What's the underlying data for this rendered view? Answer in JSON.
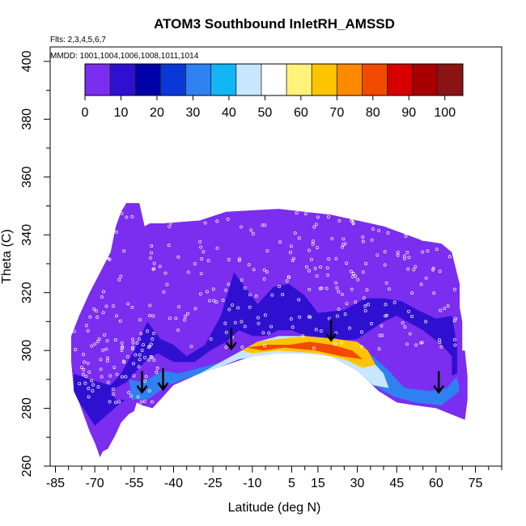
{
  "chart_data": {
    "type": "heatmap",
    "title": "ATOM3 Southbound InletRH_AMSSD",
    "flights_label": "Flts: 2,3,4,5,6,7",
    "dates_label": "MMDD: 1001,1004,1006,1008,1011,1014",
    "xlabel": "Latitude (deg N)",
    "ylabel": "Theta (C)",
    "xlim": [
      -87,
      85
    ],
    "ylim": [
      260,
      405
    ],
    "x_ticks": [
      -85,
      -70,
      -55,
      -40,
      -25,
      -10,
      5,
      15,
      30,
      45,
      60,
      75
    ],
    "y_ticks": [
      260,
      280,
      300,
      320,
      340,
      360,
      380,
      400
    ],
    "colorbar": {
      "min": 0,
      "max": 105,
      "ticks": [
        0,
        10,
        20,
        30,
        40,
        50,
        60,
        70,
        80,
        90,
        100
      ],
      "colors": [
        "#7b2df0",
        "#3010d0",
        "#0000a8",
        "#0a38d8",
        "#2f80f0",
        "#12b6f5",
        "#c8e6ff",
        "#ffffff",
        "#fff27a",
        "#ffc400",
        "#ff8a00",
        "#f24a00",
        "#d60000",
        "#a80000",
        "#8a1414"
      ]
    },
    "upper_boundary": [
      [
        -79,
        305
      ],
      [
        -76,
        312
      ],
      [
        -72,
        320
      ],
      [
        -68,
        327
      ],
      [
        -64,
        334
      ],
      [
        -62,
        343
      ],
      [
        -60,
        348
      ],
      [
        -58,
        351
      ],
      [
        -53,
        351
      ],
      [
        -52,
        347
      ],
      [
        -51,
        343
      ],
      [
        -49,
        344
      ],
      [
        -44,
        344
      ],
      [
        -30,
        345
      ],
      [
        -20,
        348
      ],
      [
        0,
        349
      ],
      [
        20,
        347
      ],
      [
        40,
        343
      ],
      [
        55,
        338
      ],
      [
        62,
        337
      ],
      [
        66,
        334
      ],
      [
        69,
        323
      ],
      [
        69,
        315
      ],
      [
        70,
        310
      ],
      [
        70,
        300
      ],
      [
        71,
        300
      ],
      [
        72,
        291
      ],
      [
        72,
        283
      ],
      [
        71,
        276
      ]
    ],
    "lower_boundary": [
      [
        71,
        276
      ],
      [
        60,
        280
      ],
      [
        52,
        281
      ],
      [
        45,
        282
      ],
      [
        38,
        286
      ],
      [
        30,
        293
      ],
      [
        20,
        298
      ],
      [
        10,
        299
      ],
      [
        0,
        299
      ],
      [
        -10,
        298
      ],
      [
        -20,
        295
      ],
      [
        -30,
        292
      ],
      [
        -40,
        288
      ],
      [
        -45,
        283
      ],
      [
        -48,
        280
      ],
      [
        -52,
        281
      ],
      [
        -54,
        282
      ],
      [
        -55,
        279
      ],
      [
        -57,
        278
      ],
      [
        -60,
        275
      ],
      [
        -62,
        271
      ],
      [
        -65,
        266
      ],
      [
        -67,
        265
      ],
      [
        -68,
        263
      ],
      [
        -70,
        268
      ],
      [
        -72,
        272
      ],
      [
        -74,
        277
      ],
      [
        -76,
        282
      ],
      [
        -78,
        286
      ],
      [
        -79,
        296
      ],
      [
        -79,
        305
      ]
    ],
    "bands": [
      {
        "rh": 10,
        "points": [
          [
            -78,
            292
          ],
          [
            -72,
            290
          ],
          [
            -64,
            288
          ],
          [
            -60,
            292
          ],
          [
            -55,
            300
          ],
          [
            -50,
            310
          ],
          [
            -45,
            304
          ],
          [
            -40,
            302
          ],
          [
            -35,
            298
          ],
          [
            -28,
            302
          ],
          [
            -22,
            312
          ],
          [
            -17,
            327
          ],
          [
            -12,
            321
          ],
          [
            -8,
            316
          ],
          [
            -2,
            322
          ],
          [
            4,
            323
          ],
          [
            10,
            319
          ],
          [
            15,
            313
          ],
          [
            25,
            314
          ],
          [
            33,
            318
          ],
          [
            40,
            318
          ],
          [
            47,
            317
          ],
          [
            53,
            314
          ],
          [
            60,
            311
          ],
          [
            66,
            312
          ],
          [
            68,
            302
          ],
          [
            68,
            292
          ],
          [
            60,
            289
          ],
          [
            50,
            285
          ],
          [
            40,
            291
          ],
          [
            30,
            298
          ],
          [
            -10,
            302
          ],
          [
            -30,
            296
          ],
          [
            -45,
            290
          ],
          [
            -60,
            282
          ],
          [
            -70,
            274
          ],
          [
            -78,
            285
          ]
        ]
      },
      {
        "rh": 5,
        "points": [
          [
            -64,
            286
          ],
          [
            -58,
            289
          ],
          [
            -50,
            297
          ],
          [
            -46,
            299
          ],
          [
            -40,
            296
          ],
          [
            -32,
            296
          ],
          [
            -26,
            300
          ],
          [
            -20,
            303
          ],
          [
            -15,
            307
          ],
          [
            -10,
            305
          ],
          [
            -5,
            305
          ],
          [
            0,
            307
          ],
          [
            5,
            307
          ],
          [
            10,
            305
          ],
          [
            20,
            303
          ],
          [
            30,
            304
          ],
          [
            40,
            310
          ],
          [
            45,
            312
          ],
          [
            55,
            307
          ],
          [
            62,
            302
          ],
          [
            66,
            298
          ],
          [
            66,
            286
          ],
          [
            60,
            284
          ],
          [
            50,
            286
          ],
          [
            40,
            290
          ],
          [
            30,
            297
          ],
          [
            10,
            302
          ],
          [
            -10,
            301
          ],
          [
            -30,
            294
          ],
          [
            -45,
            287
          ],
          [
            -55,
            283
          ],
          [
            -62,
            283
          ]
        ]
      },
      {
        "rh": 30,
        "points": [
          [
            -57,
            290
          ],
          [
            -52,
            289
          ],
          [
            -44,
            293
          ],
          [
            -38,
            292
          ],
          [
            -30,
            294
          ],
          [
            -22,
            296
          ],
          [
            -16,
            298
          ],
          [
            -8,
            302
          ],
          [
            0,
            305
          ],
          [
            8,
            305
          ],
          [
            18,
            304
          ],
          [
            28,
            302
          ],
          [
            36,
            298
          ],
          [
            42,
            293
          ],
          [
            48,
            287
          ],
          [
            58,
            286
          ],
          [
            64,
            287
          ],
          [
            68,
            291
          ],
          [
            69,
            286
          ],
          [
            62,
            281
          ],
          [
            52,
            282
          ],
          [
            44,
            284
          ],
          [
            36,
            288
          ],
          [
            28,
            294
          ],
          [
            15,
            298
          ],
          [
            0,
            299
          ],
          [
            -15,
            297
          ],
          [
            -30,
            292
          ],
          [
            -42,
            288
          ],
          [
            -50,
            283
          ],
          [
            -56,
            283
          ]
        ]
      },
      {
        "rh": 45,
        "points": [
          [
            -30,
            292
          ],
          [
            -22,
            296
          ],
          [
            -16,
            299
          ],
          [
            -8,
            303
          ],
          [
            0,
            305
          ],
          [
            10,
            305
          ],
          [
            22,
            304
          ],
          [
            30,
            302
          ],
          [
            36,
            296
          ],
          [
            40,
            292
          ],
          [
            42,
            287
          ],
          [
            36,
            288
          ],
          [
            28,
            294
          ],
          [
            15,
            298
          ],
          [
            0,
            299
          ],
          [
            -15,
            297
          ],
          [
            -26,
            293
          ]
        ]
      },
      {
        "rh": 65,
        "points": [
          [
            -14,
            300
          ],
          [
            -8,
            303
          ],
          [
            0,
            304
          ],
          [
            10,
            305
          ],
          [
            22,
            304
          ],
          [
            30,
            303
          ],
          [
            34,
            300
          ],
          [
            37,
            295
          ],
          [
            32,
            294
          ],
          [
            25,
            297
          ],
          [
            15,
            299
          ],
          [
            0,
            300
          ],
          [
            -10,
            299
          ]
        ]
      },
      {
        "rh": 82,
        "points": [
          [
            -12,
            301
          ],
          [
            -4,
            302
          ],
          [
            4,
            302
          ],
          [
            12,
            303
          ],
          [
            20,
            302
          ],
          [
            28,
            300
          ],
          [
            32,
            297
          ],
          [
            24,
            298
          ],
          [
            14,
            300
          ],
          [
            2,
            301
          ],
          [
            -6,
            300
          ]
        ]
      }
    ],
    "arrows": [
      [
        -52,
        285
      ],
      [
        -44,
        286
      ],
      [
        -18,
        300
      ],
      [
        20,
        303
      ],
      [
        61,
        285
      ]
    ]
  }
}
